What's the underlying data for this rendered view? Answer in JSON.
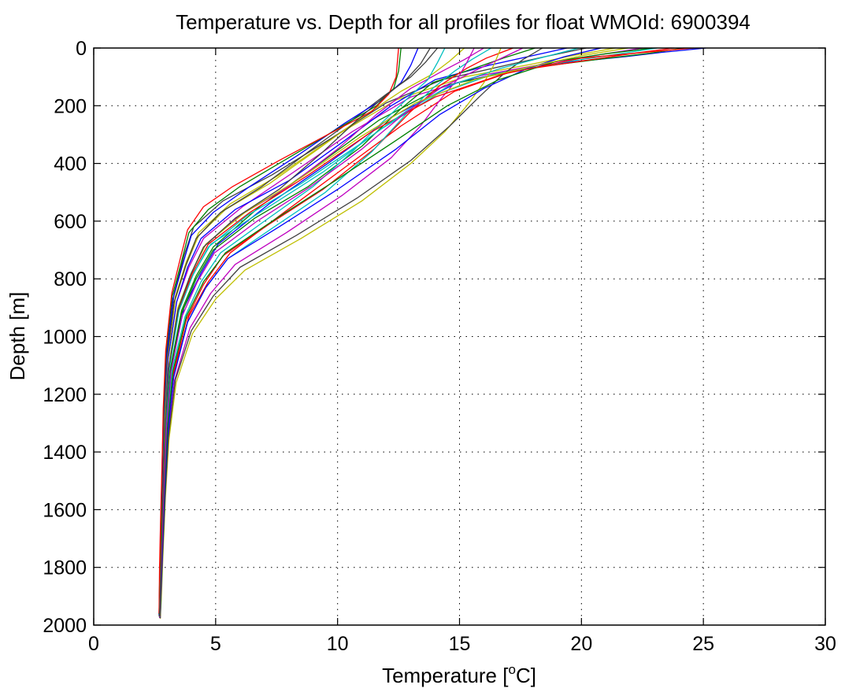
{
  "chart_data": {
    "type": "line",
    "title": "Temperature vs. Depth for all profiles for float WMOId: 6900394",
    "xlabel": "Temperature [",
    "xlabel_superscript": "o",
    "xlabel_suffix": "C]",
    "ylabel": "Depth [m]",
    "xlim": [
      0,
      30
    ],
    "ylim": [
      0,
      2000
    ],
    "y_reversed": true,
    "grid": true,
    "grid_style": "dotted",
    "x_ticks": [
      0,
      5,
      10,
      15,
      20,
      25,
      30
    ],
    "y_ticks": [
      0,
      200,
      400,
      600,
      800,
      1000,
      1200,
      1400,
      1600,
      1800,
      2000
    ],
    "x_tick_labels": [
      "0",
      "5",
      "10",
      "15",
      "20",
      "25",
      "30"
    ],
    "y_tick_labels": [
      "0",
      "200",
      "400",
      "600",
      "800",
      "1000",
      "1200",
      "1400",
      "1600",
      "1800",
      "2000"
    ],
    "series_colors": [
      "#0000ff",
      "#008000",
      "#ff0000",
      "#00bfbf",
      "#bf00bf",
      "#bfbf00",
      "#404040"
    ],
    "series": [
      {
        "x": [
          25.1,
          23.3,
          21.8,
          18.2,
          14.9,
          12.2,
          9.6,
          7.2,
          5.1,
          4.4,
          3.7,
          3.2,
          3.0,
          2.9,
          2.8,
          2.75,
          2.7
        ],
        "y": [
          0,
          15,
          30,
          60,
          120,
          240,
          400,
          540,
          680,
          780,
          900,
          1100,
          1300,
          1500,
          1700,
          1850,
          1975
        ]
      },
      {
        "x": [
          24.2,
          22.8,
          21.1,
          17.8,
          14.4,
          11.7,
          9.1,
          6.8,
          4.9,
          4.2,
          3.6,
          3.15,
          2.97,
          2.88,
          2.8,
          2.74,
          2.72
        ],
        "y": [
          0,
          18,
          35,
          70,
          130,
          250,
          410,
          550,
          690,
          790,
          910,
          1110,
          1310,
          1510,
          1710,
          1860,
          1970
        ]
      },
      {
        "x": [
          23.8,
          22.0,
          20.4,
          17.2,
          14.8,
          12.6,
          10.2,
          7.8,
          5.6,
          4.7,
          3.9,
          3.3,
          3.05,
          2.92,
          2.82,
          2.76,
          2.7
        ],
        "y": [
          0,
          20,
          40,
          80,
          150,
          270,
          420,
          570,
          710,
          810,
          930,
          1120,
          1320,
          1520,
          1720,
          1870,
          1975
        ]
      },
      {
        "x": [
          23.1,
          21.4,
          19.6,
          16.4,
          14.1,
          11.8,
          9.4,
          7.0,
          4.8,
          4.1,
          3.5,
          3.1,
          2.95,
          2.86,
          2.79,
          2.73,
          2.7
        ],
        "y": [
          0,
          22,
          45,
          90,
          160,
          280,
          430,
          560,
          680,
          780,
          900,
          1100,
          1300,
          1500,
          1700,
          1850,
          1972
        ]
      },
      {
        "x": [
          22.5,
          20.6,
          18.8,
          15.9,
          13.0,
          10.6,
          8.2,
          6.1,
          4.5,
          3.9,
          3.4,
          3.05,
          2.92,
          2.85,
          2.78,
          2.73,
          2.7
        ],
        "y": [
          0,
          25,
          50,
          95,
          170,
          290,
          430,
          550,
          660,
          760,
          880,
          1080,
          1290,
          1490,
          1690,
          1840,
          1968
        ]
      },
      {
        "x": [
          21.4,
          19.7,
          18.0,
          15.2,
          12.4,
          10.0,
          7.6,
          5.6,
          4.3,
          3.8,
          3.35,
          3.02,
          2.9,
          2.83,
          2.77,
          2.72,
          2.69
        ],
        "y": [
          0,
          25,
          55,
          100,
          180,
          300,
          440,
          540,
          640,
          740,
          860,
          1070,
          1280,
          1480,
          1680,
          1830,
          1965
        ]
      },
      {
        "x": [
          20.2,
          18.5,
          16.9,
          14.3,
          12.0,
          9.8,
          7.3,
          5.3,
          4.1,
          3.7,
          3.3,
          3.0,
          2.88,
          2.82,
          2.76,
          2.72,
          2.68
        ],
        "y": [
          0,
          30,
          60,
          110,
          190,
          310,
          440,
          530,
          620,
          720,
          850,
          1060,
          1270,
          1470,
          1670,
          1820,
          1970
        ]
      },
      {
        "x": [
          19.4,
          17.8,
          16.2,
          14.0,
          12.2,
          10.3,
          8.0,
          5.8,
          4.4,
          3.85,
          3.4,
          3.05,
          2.92,
          2.84,
          2.78,
          2.73,
          2.7
        ],
        "y": [
          0,
          30,
          60,
          110,
          200,
          320,
          460,
          560,
          660,
          760,
          880,
          1080,
          1290,
          1490,
          1690,
          1840,
          1972
        ]
      },
      {
        "x": [
          18.1,
          16.8,
          15.6,
          13.9,
          12.6,
          11.0,
          8.8,
          6.6,
          4.9,
          4.2,
          3.6,
          3.15,
          2.97,
          2.88,
          2.8,
          2.74,
          2.71
        ],
        "y": [
          0,
          35,
          70,
          120,
          210,
          340,
          480,
          590,
          700,
          800,
          920,
          1120,
          1320,
          1520,
          1720,
          1870,
          1973
        ]
      },
      {
        "x": [
          17.2,
          16.1,
          15.3,
          14.2,
          13.0,
          11.5,
          9.4,
          7.2,
          5.3,
          4.5,
          3.8,
          3.25,
          3.02,
          2.9,
          2.81,
          2.75,
          2.72
        ],
        "y": [
          0,
          35,
          70,
          130,
          220,
          350,
          490,
          610,
          720,
          820,
          940,
          1130,
          1330,
          1530,
          1730,
          1880,
          1975
        ]
      },
      {
        "x": [
          16.3,
          15.5,
          14.8,
          13.9,
          12.8,
          11.4,
          9.5,
          7.4,
          5.5,
          4.6,
          3.85,
          3.28,
          3.03,
          2.91,
          2.82,
          2.76,
          2.72
        ],
        "y": [
          0,
          40,
          80,
          140,
          230,
          360,
          500,
          620,
          730,
          830,
          950,
          1140,
          1340,
          1540,
          1740,
          1890,
          1975
        ]
      },
      {
        "x": [
          16.0,
          15.2,
          14.3,
          13.0,
          11.6,
          10.0,
          8.0,
          6.0,
          4.6,
          4.0,
          3.5,
          3.1,
          2.95,
          2.86,
          2.79,
          2.73,
          2.7
        ],
        "y": [
          0,
          40,
          80,
          140,
          230,
          350,
          480,
          580,
          680,
          780,
          900,
          1100,
          1300,
          1500,
          1700,
          1850,
          1970
        ]
      },
      {
        "x": [
          15.2,
          14.6,
          13.9,
          12.6,
          11.0,
          9.2,
          7.2,
          5.4,
          4.3,
          3.8,
          3.35,
          3.02,
          2.9,
          2.83,
          2.77,
          2.72,
          2.69
        ],
        "y": [
          0,
          45,
          90,
          150,
          240,
          350,
          470,
          560,
          650,
          750,
          870,
          1080,
          1280,
          1480,
          1680,
          1830,
          1968
        ]
      },
      {
        "x": [
          14.1,
          13.6,
          13.0,
          12.0,
          10.6,
          8.8,
          6.9,
          5.2,
          4.2,
          3.75,
          3.3,
          3.0,
          2.88,
          2.82,
          2.76,
          2.72,
          2.69
        ],
        "y": [
          0,
          50,
          100,
          160,
          250,
          360,
          480,
          570,
          660,
          760,
          880,
          1080,
          1280,
          1480,
          1680,
          1830,
          1966
        ]
      },
      {
        "x": [
          13.3,
          13.0,
          12.6,
          11.8,
          10.3,
          8.4,
          6.4,
          4.9,
          4.0,
          3.65,
          3.25,
          2.98,
          2.87,
          2.81,
          2.75,
          2.71,
          2.68
        ],
        "y": [
          0,
          60,
          120,
          180,
          260,
          370,
          480,
          570,
          650,
          750,
          870,
          1070,
          1270,
          1470,
          1670,
          1820,
          1965
        ]
      },
      {
        "x": [
          12.6,
          12.5,
          12.3,
          11.6,
          10.0,
          8.0,
          6.0,
          4.7,
          3.9,
          3.6,
          3.22,
          2.96,
          2.86,
          2.8,
          2.75,
          2.71,
          2.68
        ],
        "y": [
          0,
          80,
          140,
          200,
          280,
          380,
          480,
          560,
          640,
          740,
          860,
          1060,
          1260,
          1460,
          1660,
          1810,
          1962
        ]
      },
      {
        "x": [
          12.5,
          12.4,
          12.1,
          11.4,
          9.6,
          7.6,
          5.7,
          4.5,
          3.85,
          3.55,
          3.2,
          2.95,
          2.85,
          2.8,
          2.74,
          2.7,
          2.68
        ],
        "y": [
          0,
          100,
          160,
          220,
          300,
          390,
          480,
          550,
          630,
          730,
          850,
          1050,
          1250,
          1450,
          1650,
          1800,
          1960
        ]
      },
      {
        "x": [
          14.4,
          14.1,
          13.7,
          12.8,
          11.8,
          10.6,
          9.0,
          7.0,
          5.2,
          4.4,
          3.75,
          3.2,
          3.0,
          2.89,
          2.8,
          2.74,
          2.71
        ],
        "y": [
          0,
          50,
          110,
          180,
          260,
          360,
          480,
          600,
          710,
          810,
          930,
          1120,
          1320,
          1520,
          1720,
          1870,
          1974
        ]
      },
      {
        "x": [
          15.6,
          15.3,
          14.9,
          14.2,
          13.4,
          12.2,
          10.2,
          7.9,
          5.8,
          4.8,
          3.95,
          3.32,
          3.05,
          2.92,
          2.83,
          2.76,
          2.73
        ],
        "y": [
          0,
          50,
          110,
          180,
          270,
          380,
          510,
          640,
          750,
          850,
          970,
          1150,
          1350,
          1550,
          1750,
          1900,
          1977
        ]
      },
      {
        "x": [
          16.7,
          16.4,
          16.0,
          15.3,
          14.4,
          13.0,
          11.0,
          8.5,
          6.2,
          5.0,
          4.05,
          3.38,
          3.08,
          2.94,
          2.84,
          2.77,
          2.73
        ],
        "y": [
          0,
          60,
          120,
          200,
          290,
          400,
          530,
          660,
          770,
          870,
          990,
          1160,
          1360,
          1560,
          1760,
          1910,
          1978
        ]
      },
      {
        "x": [
          18.4,
          17.6,
          16.8,
          15.8,
          14.6,
          13.0,
          10.8,
          8.3,
          6.0,
          4.9,
          4.0,
          3.35,
          3.06,
          2.93,
          2.83,
          2.76,
          2.73
        ],
        "y": [
          0,
          40,
          90,
          170,
          270,
          390,
          520,
          650,
          760,
          860,
          980,
          1150,
          1350,
          1550,
          1750,
          1900,
          1976
        ]
      },
      {
        "x": [
          20.8,
          19.3,
          17.8,
          16.0,
          14.2,
          12.4,
          10.0,
          7.6,
          5.5,
          4.6,
          3.85,
          3.28,
          3.03,
          2.91,
          2.82,
          2.75,
          2.72
        ],
        "y": [
          0,
          30,
          70,
          140,
          230,
          350,
          490,
          620,
          730,
          830,
          950,
          1140,
          1340,
          1540,
          1740,
          1890,
          1975
        ]
      },
      {
        "x": [
          22.9,
          21.0,
          19.0,
          16.6,
          14.5,
          12.4,
          9.9,
          7.5,
          5.4,
          4.5,
          3.8,
          3.25,
          3.02,
          2.9,
          2.81,
          2.75,
          2.72
        ],
        "y": [
          0,
          20,
          45,
          110,
          200,
          320,
          460,
          590,
          710,
          810,
          930,
          1120,
          1320,
          1520,
          1720,
          1870,
          1974
        ]
      },
      {
        "x": [
          24.6,
          22.6,
          20.0,
          16.8,
          14.0,
          11.4,
          8.8,
          6.4,
          4.7,
          4.05,
          3.5,
          3.1,
          2.95,
          2.86,
          2.79,
          2.73,
          2.7
        ],
        "y": [
          0,
          15,
          35,
          90,
          170,
          290,
          440,
          570,
          680,
          780,
          900,
          1100,
          1300,
          1500,
          1700,
          1850,
          1972
        ]
      },
      {
        "x": [
          19.9,
          18.3,
          16.7,
          14.6,
          12.8,
          10.8,
          8.5,
          6.3,
          4.7,
          4.05,
          3.5,
          3.1,
          2.95,
          2.86,
          2.79,
          2.73,
          2.7
        ],
        "y": [
          0,
          35,
          70,
          130,
          220,
          340,
          470,
          580,
          690,
          790,
          910,
          1110,
          1310,
          1510,
          1710,
          1860,
          1971
        ]
      },
      {
        "x": [
          17.6,
          16.6,
          15.6,
          14.2,
          12.7,
          11.0,
          8.9,
          6.7,
          4.95,
          4.25,
          3.62,
          3.17,
          2.98,
          2.88,
          2.8,
          2.74,
          2.71
        ],
        "y": [
          0,
          40,
          80,
          140,
          230,
          350,
          480,
          600,
          710,
          810,
          930,
          1120,
          1320,
          1520,
          1720,
          1870,
          1973
        ]
      },
      {
        "x": [
          21.9,
          20.1,
          18.4,
          15.6,
          13.2,
          10.9,
          8.5,
          6.2,
          4.6,
          4.0,
          3.45,
          3.08,
          2.93,
          2.85,
          2.78,
          2.73,
          2.7
        ],
        "y": [
          0,
          25,
          55,
          110,
          190,
          310,
          450,
          570,
          680,
          780,
          900,
          1100,
          1300,
          1500,
          1700,
          1850,
          1970
        ]
      },
      {
        "x": [
          13.8,
          13.4,
          12.8,
          11.9,
          10.8,
          9.4,
          7.6,
          5.8,
          4.5,
          3.95,
          3.45,
          3.08,
          2.93,
          2.85,
          2.78,
          2.73,
          2.7
        ],
        "y": [
          0,
          55,
          110,
          170,
          250,
          360,
          490,
          590,
          690,
          790,
          910,
          1110,
          1310,
          1510,
          1710,
          1860,
          1970
        ]
      }
    ]
  }
}
